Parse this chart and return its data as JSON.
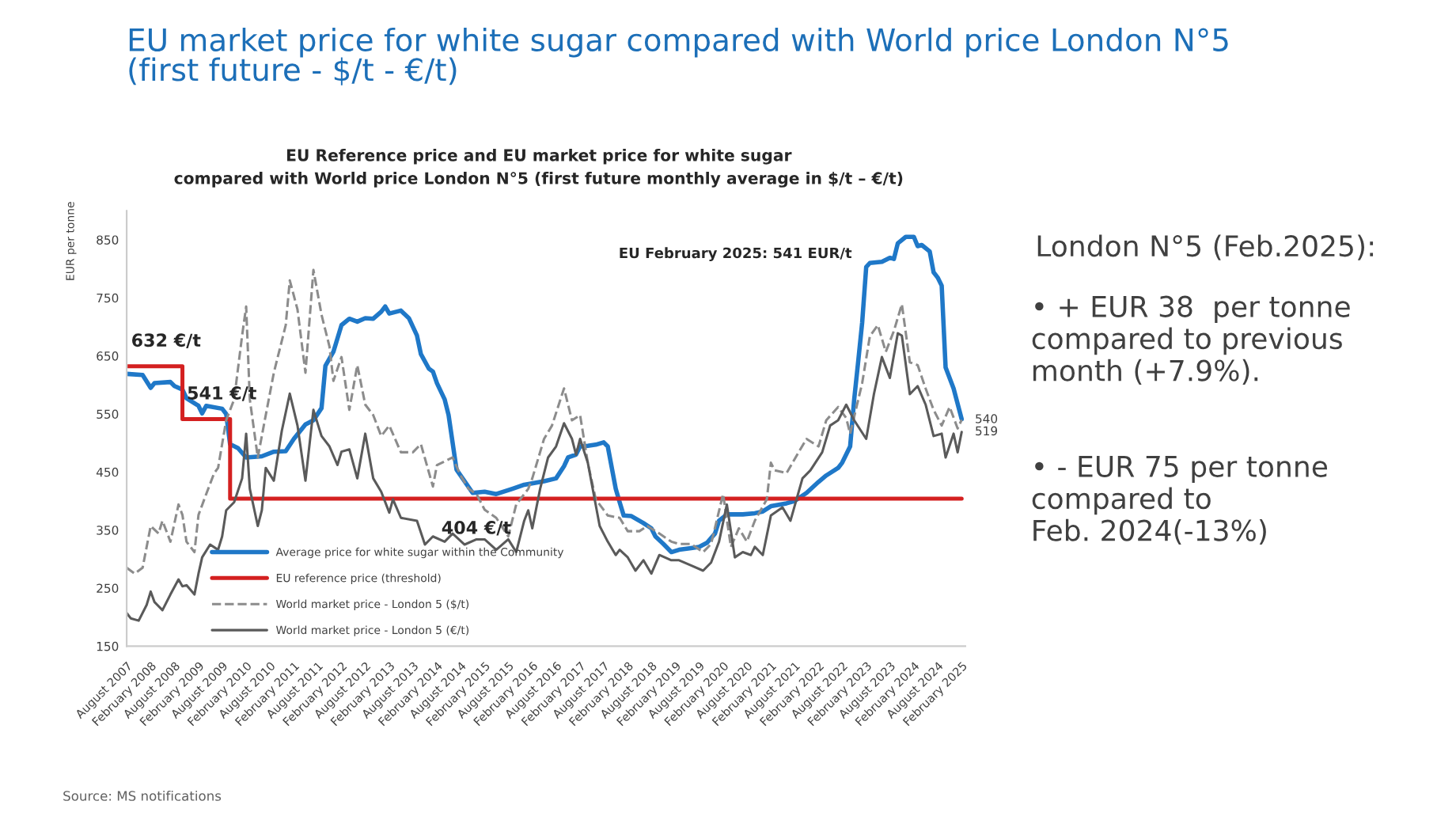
{
  "chart_data": {
    "type": "line",
    "title": "EU market price for white sugar compared with World price London N°5\n(first future - $/t - €/t)",
    "subtitle": "EU Reference price and EU market price for white sugar\ncompared with World price London N°5 (first future monthly average in $/t – €/t)",
    "ylabel": "EUR per tonne",
    "ylim": [
      150,
      900
    ],
    "yticks": [
      150,
      250,
      350,
      450,
      550,
      650,
      750,
      850
    ],
    "xlim": [
      "2007-08-01",
      "2025-03-01"
    ],
    "xticks": [
      {
        "value": "2007-08",
        "label": "August 2007"
      },
      {
        "value": "2008-02",
        "label": "February 2008"
      },
      {
        "value": "2008-08",
        "label": "August 2008"
      },
      {
        "value": "2009-02",
        "label": "February 2009"
      },
      {
        "value": "2009-08",
        "label": "August 2009"
      },
      {
        "value": "2010-02",
        "label": "February 2010"
      },
      {
        "value": "2010-08",
        "label": "August 2010"
      },
      {
        "value": "2011-02",
        "label": "February 2011"
      },
      {
        "value": "2011-08",
        "label": "August 2011"
      },
      {
        "value": "2012-02",
        "label": "February 2012"
      },
      {
        "value": "2012-08",
        "label": "August 2012"
      },
      {
        "value": "2013-02",
        "label": "February 2013"
      },
      {
        "value": "2013-08",
        "label": "August 2013"
      },
      {
        "value": "2014-02",
        "label": "February 2014"
      },
      {
        "value": "2014-08",
        "label": "August 2014"
      },
      {
        "value": "2015-02",
        "label": "February 2015"
      },
      {
        "value": "2015-08",
        "label": "August 2015"
      },
      {
        "value": "2016-02",
        "label": "February 2016"
      },
      {
        "value": "2016-08",
        "label": "August 2016"
      },
      {
        "value": "2017-02",
        "label": "February 2017"
      },
      {
        "value": "2017-08",
        "label": "August 2017"
      },
      {
        "value": "2018-02",
        "label": "February 2018"
      },
      {
        "value": "2018-08",
        "label": "August 2018"
      },
      {
        "value": "2019-02",
        "label": "February 2019"
      },
      {
        "value": "2019-08",
        "label": "August 2019"
      },
      {
        "value": "2020-02",
        "label": "February 2020"
      },
      {
        "value": "2020-08",
        "label": "August 2020"
      },
      {
        "value": "2021-02",
        "label": "February 2021"
      },
      {
        "value": "2021-08",
        "label": "August 2021"
      },
      {
        "value": "2022-02",
        "label": "February 2022"
      },
      {
        "value": "2022-08",
        "label": "August 2022"
      },
      {
        "value": "2023-02",
        "label": "February 2023"
      },
      {
        "value": "2023-08",
        "label": "August 2023"
      },
      {
        "value": "2024-02",
        "label": "February 2024"
      },
      {
        "value": "2024-08",
        "label": "August 2024"
      },
      {
        "value": "2025-02",
        "label": "February 2025"
      }
    ],
    "legend": "bottom left",
    "grid": false,
    "series": [
      {
        "name": "Average price for white sugar within the Community",
        "color": "#1f78c8",
        "line_style": "solid",
        "x": [
          "2007-08",
          "2007-12",
          "2008-02",
          "2008-03",
          "2008-07",
          "2008-08",
          "2008-10",
          "2008-11",
          "2009-02",
          "2009-03",
          "2009-04",
          "2009-08",
          "2009-09",
          "2009-10",
          "2009-12",
          "2010-02",
          "2010-06",
          "2010-09",
          "2010-12",
          "2011-02",
          "2011-05",
          "2011-07",
          "2011-09",
          "2011-10",
          "2011-12",
          "2012-02",
          "2012-04",
          "2012-06",
          "2012-08",
          "2012-10",
          "2012-12",
          "2013-01",
          "2013-02",
          "2013-05",
          "2013-07",
          "2013-09",
          "2013-10",
          "2013-12",
          "2014-01",
          "2014-02",
          "2014-04",
          "2014-05",
          "2014-07",
          "2014-09",
          "2014-11",
          "2015-02",
          "2015-05",
          "2015-09",
          "2015-12",
          "2016-05",
          "2016-08",
          "2016-10",
          "2016-11",
          "2017-01",
          "2017-02",
          "2017-04",
          "2017-06",
          "2017-08",
          "2017-09",
          "2017-11",
          "2017-12",
          "2018-01",
          "2018-03",
          "2018-06",
          "2018-08",
          "2018-09",
          "2018-11",
          "2019-01",
          "2019-03",
          "2019-06",
          "2019-08",
          "2019-10",
          "2019-12",
          "2020-01",
          "2020-03",
          "2020-07",
          "2020-10",
          "2020-12",
          "2021-02",
          "2021-06",
          "2021-08",
          "2021-11",
          "2022-02",
          "2022-04",
          "2022-07",
          "2022-08",
          "2022-10",
          "2022-11",
          "2022-12",
          "2023-01",
          "2023-02",
          "2023-03",
          "2023-06",
          "2023-08",
          "2023-09",
          "2023-10",
          "2023-12",
          "2024-02",
          "2024-03",
          "2024-04",
          "2024-06",
          "2024-07",
          "2024-08",
          "2024-09",
          "2024-10",
          "2024-12",
          "2025-02"
        ],
        "values": [
          619,
          617,
          595,
          603,
          605,
          598,
          592,
          577,
          564,
          551,
          564,
          559,
          550,
          498,
          491,
          475,
          477,
          485,
          486,
          507,
          532,
          539,
          560,
          633,
          657,
          703,
          714,
          709,
          715,
          714,
          726,
          735,
          723,
          728,
          715,
          685,
          653,
          628,
          623,
          603,
          575,
          548,
          454,
          434,
          414,
          416,
          412,
          421,
          428,
          434,
          439,
          460,
          475,
          480,
          494,
          495,
          497,
          501,
          494,
          421,
          398,
          375,
          374,
          362,
          353,
          339,
          326,
          312,
          316,
          319,
          321,
          328,
          344,
          366,
          377,
          377,
          379,
          382,
          391,
          396,
          400,
          414,
          433,
          444,
          457,
          466,
          494,
          575,
          639,
          707,
          803,
          810,
          812,
          819,
          817,
          844,
          855,
          855,
          839,
          841,
          830,
          794,
          785,
          771,
          630,
          594,
          541
        ]
      },
      {
        "name": "EU reference price (threshold)",
        "color": "#d42020",
        "type": "step",
        "line_style": "solid",
        "x": [
          "2007-08",
          "2008-10",
          "2009-10",
          "2025-02"
        ],
        "values": [
          632,
          541,
          404,
          404
        ]
      },
      {
        "name": "World market price - London 5 ($/t)",
        "color": "#8c8c8c",
        "line_style": "dashed",
        "x": [
          "2007-08",
          "2007-10",
          "2007-12",
          "2008-02",
          "2008-04",
          "2008-05",
          "2008-07",
          "2008-09",
          "2008-10",
          "2008-11",
          "2009-01",
          "2009-02",
          "2009-04",
          "2009-06",
          "2009-07",
          "2009-09",
          "2009-11",
          "2010-01",
          "2010-02",
          "2010-03",
          "2010-05",
          "2010-07",
          "2010-09",
          "2010-12",
          "2011-01",
          "2011-03",
          "2011-05",
          "2011-07",
          "2011-09",
          "2011-11",
          "2011-12",
          "2012-02",
          "2012-04",
          "2012-06",
          "2012-08",
          "2012-10",
          "2012-12",
          "2013-02",
          "2013-05",
          "2013-08",
          "2013-10",
          "2014-01",
          "2014-02",
          "2014-06",
          "2014-08",
          "2014-10",
          "2014-12",
          "2015-02",
          "2015-05",
          "2015-08",
          "2015-10",
          "2016-01",
          "2016-02",
          "2016-05",
          "2016-07",
          "2016-10",
          "2016-12",
          "2017-02",
          "2017-04",
          "2017-06",
          "2017-09",
          "2017-12",
          "2018-02",
          "2018-05",
          "2018-07",
          "2018-10",
          "2019-01",
          "2019-03",
          "2019-06",
          "2019-09",
          "2019-11",
          "2020-02",
          "2020-04",
          "2020-06",
          "2020-08",
          "2020-10",
          "2021-01",
          "2021-02",
          "2021-03",
          "2021-06",
          "2021-09",
          "2021-11",
          "2022-02",
          "2022-04",
          "2022-07",
          "2022-09",
          "2022-10",
          "2023-01",
          "2023-03",
          "2023-05",
          "2023-07",
          "2023-09",
          "2023-11",
          "2024-01",
          "2024-03",
          "2024-05",
          "2024-07",
          "2024-09",
          "2024-11",
          "2025-01",
          "2025-02"
        ],
        "values": [
          285,
          275,
          285,
          357,
          344,
          366,
          330,
          394,
          376,
          330,
          312,
          376,
          412,
          448,
          457,
          539,
          575,
          685,
          735,
          575,
          475,
          548,
          621,
          703,
          780,
          730,
          621,
          798,
          721,
          666,
          607,
          648,
          557,
          634,
          566,
          548,
          512,
          530,
          484,
          484,
          498,
          425,
          462,
          475,
          444,
          421,
          412,
          385,
          371,
          339,
          394,
          421,
          439,
          507,
          530,
          594,
          539,
          548,
          466,
          403,
          375,
          371,
          348,
          348,
          357,
          344,
          330,
          326,
          326,
          312,
          326,
          412,
          321,
          353,
          330,
          366,
          403,
          466,
          453,
          448,
          484,
          507,
          494,
          539,
          562,
          543,
          516,
          603,
          684,
          703,
          657,
          693,
          739,
          639,
          634,
          594,
          557,
          530,
          562,
          525,
          540
        ],
        "value_labels": [
          null,
          null,
          null,
          null,
          null,
          null,
          null,
          null,
          null,
          null,
          null,
          null,
          null,
          null,
          null,
          null,
          null,
          null,
          null,
          null,
          null,
          null,
          null,
          null,
          null,
          null,
          null,
          null,
          null,
          null,
          null,
          null,
          null,
          null,
          null,
          null,
          null,
          null,
          null,
          null,
          null,
          null,
          null,
          null,
          null,
          null,
          null,
          null,
          null,
          null,
          null,
          null,
          null,
          null,
          null,
          null,
          null,
          null,
          null,
          null,
          null,
          null,
          null,
          null,
          null,
          null,
          null,
          null,
          null,
          null,
          null,
          null,
          null,
          null,
          null,
          null,
          null,
          null,
          null,
          null,
          null,
          null,
          null,
          null,
          null,
          null,
          null,
          null,
          null,
          null,
          null,
          null,
          null,
          null,
          null,
          null,
          null,
          null,
          null,
          null,
          "540"
        ]
      },
      {
        "name": "World market price - London 5 (€/t)",
        "color": "#5a5a5a",
        "line_style": "solid",
        "x": [
          "2007-08",
          "2007-09",
          "2007-11",
          "2008-01",
          "2008-02",
          "2008-03",
          "2008-05",
          "2008-07",
          "2008-09",
          "2008-10",
          "2008-11",
          "2009-01",
          "2009-02",
          "2009-03",
          "2009-05",
          "2009-07",
          "2009-08",
          "2009-09",
          "2009-11",
          "2010-01",
          "2010-02",
          "2010-03",
          "2010-05",
          "2010-06",
          "2010-07",
          "2010-09",
          "2010-11",
          "2011-01",
          "2011-03",
          "2011-05",
          "2011-07",
          "2011-09",
          "2011-11",
          "2012-01",
          "2012-02",
          "2012-04",
          "2012-06",
          "2012-08",
          "2012-10",
          "2012-12",
          "2013-02",
          "2013-03",
          "2013-05",
          "2013-09",
          "2013-11",
          "2014-01",
          "2014-04",
          "2014-06",
          "2014-09",
          "2014-12",
          "2015-02",
          "2015-05",
          "2015-08",
          "2015-10",
          "2015-12",
          "2016-01",
          "2016-02",
          "2016-04",
          "2016-06",
          "2016-08",
          "2016-10",
          "2016-12",
          "2017-01",
          "2017-02",
          "2017-04",
          "2017-07",
          "2017-09",
          "2017-11",
          "2017-12",
          "2018-02",
          "2018-04",
          "2018-06",
          "2018-08",
          "2018-10",
          "2019-01",
          "2019-03",
          "2019-06",
          "2019-09",
          "2019-11",
          "2020-01",
          "2020-03",
          "2020-05",
          "2020-07",
          "2020-09",
          "2020-10",
          "2020-12",
          "2021-02",
          "2021-05",
          "2021-07",
          "2021-10",
          "2021-12",
          "2022-03",
          "2022-05",
          "2022-07",
          "2022-09",
          "2022-11",
          "2023-02",
          "2023-04",
          "2023-06",
          "2023-08",
          "2023-10",
          "2023-11",
          "2024-01",
          "2024-03",
          "2024-05",
          "2024-07",
          "2024-09",
          "2024-10",
          "2024-12",
          "2025-01",
          "2025-02"
        ],
        "values": [
          207,
          198,
          194,
          221,
          244,
          226,
          212,
          239,
          265,
          253,
          255,
          239,
          275,
          303,
          325,
          316,
          339,
          384,
          398,
          439,
          516,
          421,
          357,
          384,
          457,
          435,
          521,
          585,
          530,
          435,
          557,
          512,
          494,
          462,
          485,
          489,
          439,
          516,
          439,
          416,
          380,
          403,
          371,
          366,
          325,
          339,
          330,
          344,
          325,
          334,
          334,
          316,
          334,
          312,
          366,
          384,
          353,
          421,
          475,
          494,
          534,
          507,
          480,
          507,
          466,
          357,
          330,
          307,
          316,
          303,
          280,
          298,
          275,
          307,
          298,
          298,
          289,
          280,
          294,
          330,
          394,
          303,
          312,
          307,
          321,
          307,
          375,
          389,
          366,
          439,
          453,
          484,
          530,
          539,
          566,
          539,
          507,
          584,
          648,
          612,
          689,
          685,
          584,
          598,
          566,
          512,
          516,
          475,
          516,
          484,
          519
        ],
        "value_labels": [
          null,
          null,
          null,
          null,
          null,
          null,
          null,
          null,
          null,
          null,
          null,
          null,
          null,
          null,
          null,
          null,
          null,
          null,
          null,
          null,
          null,
          null,
          null,
          null,
          null,
          null,
          null,
          null,
          null,
          null,
          null,
          null,
          null,
          null,
          null,
          null,
          null,
          null,
          null,
          null,
          null,
          null,
          null,
          null,
          null,
          null,
          null,
          null,
          null,
          null,
          null,
          null,
          null,
          null,
          null,
          null,
          null,
          null,
          null,
          null,
          null,
          null,
          null,
          null,
          null,
          null,
          null,
          null,
          null,
          null,
          null,
          null,
          null,
          null,
          null,
          null,
          null,
          null,
          null,
          null,
          null,
          null,
          null,
          null,
          null,
          null,
          null,
          null,
          null,
          null,
          null,
          null,
          null,
          null,
          null,
          null,
          null,
          null,
          null,
          null,
          null,
          null,
          null,
          null,
          null,
          null,
          null,
          null,
          null,
          null,
          "519"
        ]
      }
    ],
    "annotations": [
      {
        "text": "632 €/t",
        "x": "2007-08",
        "y": 632
      },
      {
        "text": "541 €/t",
        "x": "2008-10",
        "y": 541
      },
      {
        "text": "404 €/t",
        "x": "2014-02",
        "y": 404
      },
      "EU February 2025: 541 EUR/t",
      "London N°5 (Feb.2025):",
      "• + EUR 38  per tonne\ncompared to previous\nmonth (+7.9%).",
      "• - EUR 75 per tonne\ncompared to\nFeb. 2024(-13%)",
      "Source: MS notifications"
    ]
  }
}
